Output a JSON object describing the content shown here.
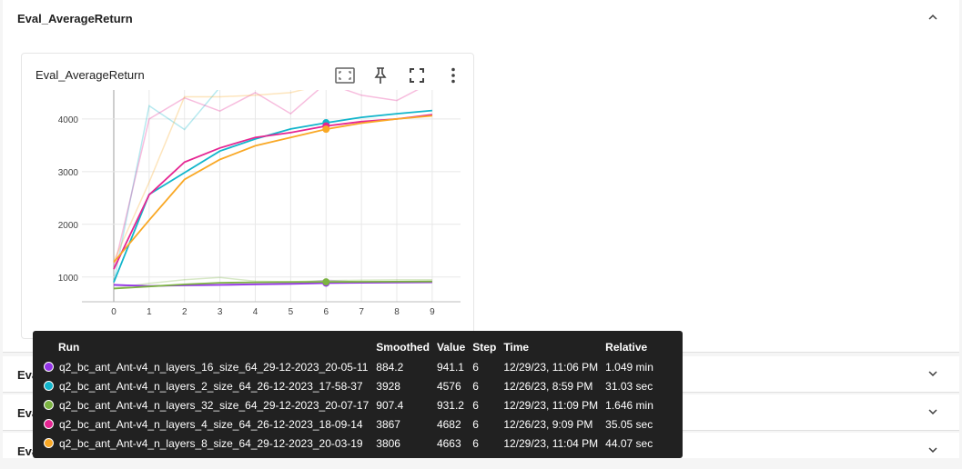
{
  "sections": [
    {
      "title": "Eval_AverageReturn",
      "expanded": true
    },
    {
      "title": "Eval_MaxReturn",
      "expanded": false
    },
    {
      "title": "Eval_MinReturn",
      "expanded": false
    },
    {
      "title": "Eval_StdReturn",
      "expanded": false
    }
  ],
  "card": {
    "title": "Eval_AverageReturn",
    "tools": [
      "fit-domain-icon",
      "pin-icon",
      "fullscreen-icon",
      "more-vert-icon"
    ]
  },
  "chart_data": {
    "type": "line",
    "x": [
      0,
      1,
      2,
      3,
      4,
      5,
      6,
      7,
      8,
      9
    ],
    "xlim": [
      -0.9,
      9.8
    ],
    "ylim": [
      530,
      4550
    ],
    "yticks": [
      1000,
      2000,
      3000,
      4000
    ],
    "xticks": [
      0,
      1,
      2,
      3,
      4,
      5,
      6,
      7,
      8,
      9
    ],
    "grid": true,
    "hover_x": 6,
    "series": [
      {
        "name": "q2_bc_ant_Ant-v4_n_layers_16_size_64_29-12-2023_20-05-11",
        "color": "#9334e6",
        "smoothed": [
          850,
          830,
          840,
          850,
          860,
          870,
          884,
          890,
          895,
          900
        ],
        "raw": [
          860,
          820,
          850,
          860,
          870,
          880,
          941,
          900,
          905,
          910
        ]
      },
      {
        "name": "q2_bc_ant_Ant-v4_n_layers_2_size_64_26-12-2023_17-58-37",
        "color": "#12b5cb",
        "smoothed": [
          900,
          2570,
          2980,
          3390,
          3620,
          3810,
          3928,
          4030,
          4100,
          4160
        ],
        "raw": [
          900,
          4250,
          3800,
          4600,
          4650,
          4600,
          4576,
          4600,
          4620,
          4640
        ]
      },
      {
        "name": "q2_bc_ant_Ant-v4_n_layers_32_size_64_29-12-2023_20-07-17",
        "color": "#7cb342",
        "smoothed": [
          780,
          820,
          860,
          890,
          900,
          905,
          907,
          910,
          912,
          915
        ],
        "raw": [
          790,
          880,
          950,
          990,
          920,
          910,
          931,
          940,
          945,
          950
        ]
      },
      {
        "name": "q2_bc_ant_Ant-v4_n_layers_4_size_64_26-12-2023_18-09-14",
        "color": "#e52592",
        "smoothed": [
          1150,
          2560,
          3180,
          3450,
          3650,
          3740,
          3867,
          3950,
          4000,
          4080
        ],
        "raw": [
          1150,
          4000,
          4400,
          4150,
          4500,
          4100,
          4682,
          4450,
          4350,
          4700
        ]
      },
      {
        "name": "q2_bc_ant_Ant-v4_n_layers_8_size_64_29-12-2023_20-03-19",
        "color": "#f9a825",
        "smoothed": [
          1280,
          2080,
          2850,
          3230,
          3490,
          3650,
          3806,
          3920,
          4000,
          4060
        ],
        "raw": [
          1300,
          2800,
          4420,
          4420,
          4450,
          4500,
          4663,
          4600,
          4620,
          4650
        ]
      }
    ]
  },
  "tooltip": {
    "headers": [
      "Run",
      "Smoothed",
      "Value",
      "Step",
      "Time",
      "Relative"
    ],
    "rows": [
      {
        "run": "q2_bc_ant_Ant-v4_n_layers_16_size_64_29-12-2023_20-05-11",
        "smoothed": "884.2",
        "value": "941.1",
        "step": "6",
        "time": "12/29/23, 11:06 PM",
        "relative": "1.049 min",
        "color": "#9334e6"
      },
      {
        "run": "q2_bc_ant_Ant-v4_n_layers_2_size_64_26-12-2023_17-58-37",
        "smoothed": "3928",
        "value": "4576",
        "step": "6",
        "time": "12/26/23, 8:59 PM",
        "relative": "31.03 sec",
        "color": "#12b5cb"
      },
      {
        "run": "q2_bc_ant_Ant-v4_n_layers_32_size_64_29-12-2023_20-07-17",
        "smoothed": "907.4",
        "value": "931.2",
        "step": "6",
        "time": "12/29/23, 11:09 PM",
        "relative": "1.646 min",
        "color": "#7cb342"
      },
      {
        "run": "q2_bc_ant_Ant-v4_n_layers_4_size_64_26-12-2023_18-09-14",
        "smoothed": "3867",
        "value": "4682",
        "step": "6",
        "time": "12/26/23, 9:09 PM",
        "relative": "35.05 sec",
        "color": "#e52592"
      },
      {
        "run": "q2_bc_ant_Ant-v4_n_layers_8_size_64_29-12-2023_20-03-19",
        "smoothed": "3806",
        "value": "4663",
        "step": "6",
        "time": "12/29/23, 11:04 PM",
        "relative": "44.07 sec",
        "color": "#f9a825"
      }
    ]
  }
}
